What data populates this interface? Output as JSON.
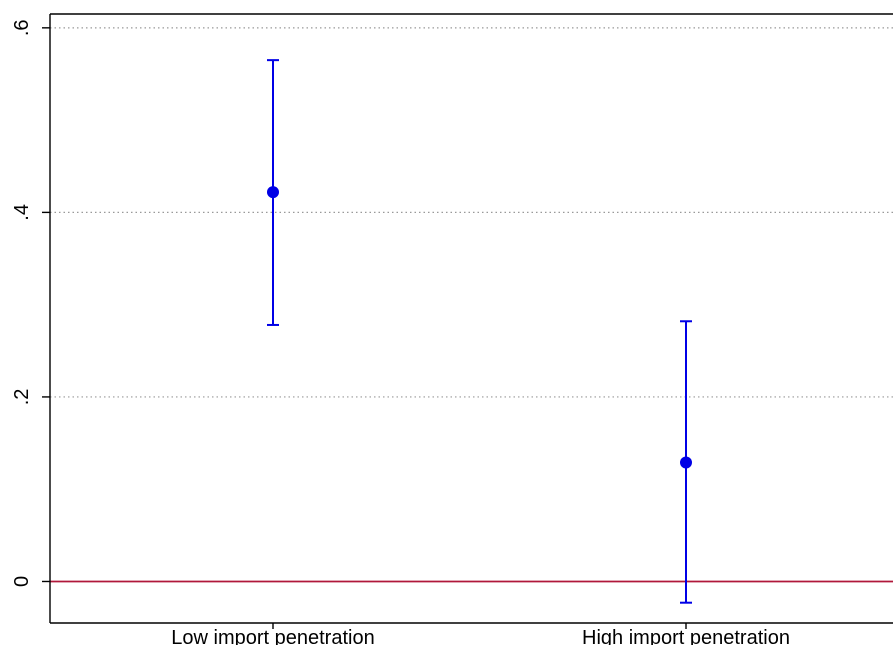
{
  "chart_data": {
    "type": "scatter",
    "subtype": "coefficient-plot-with-confidence-intervals",
    "categories": [
      "Low import penetration",
      "High import penetration"
    ],
    "estimates": [
      0.422,
      0.129
    ],
    "ci_lower": [
      0.278,
      -0.023
    ],
    "ci_upper": [
      0.565,
      0.282
    ],
    "y_ticks": [
      0,
      0.2,
      0.4,
      0.6
    ],
    "y_tick_labels": [
      "0",
      ".2",
      ".4",
      ".6"
    ],
    "ylim": [
      -0.045,
      0.615
    ],
    "reference_line": 0,
    "grid": "horizontal-dotted",
    "legend": "none",
    "colors": {
      "point": "#0000e6",
      "error_bar": "#0000e6",
      "reference_line": "#b0183a",
      "grid": "#999999",
      "axis": "#000000"
    }
  }
}
